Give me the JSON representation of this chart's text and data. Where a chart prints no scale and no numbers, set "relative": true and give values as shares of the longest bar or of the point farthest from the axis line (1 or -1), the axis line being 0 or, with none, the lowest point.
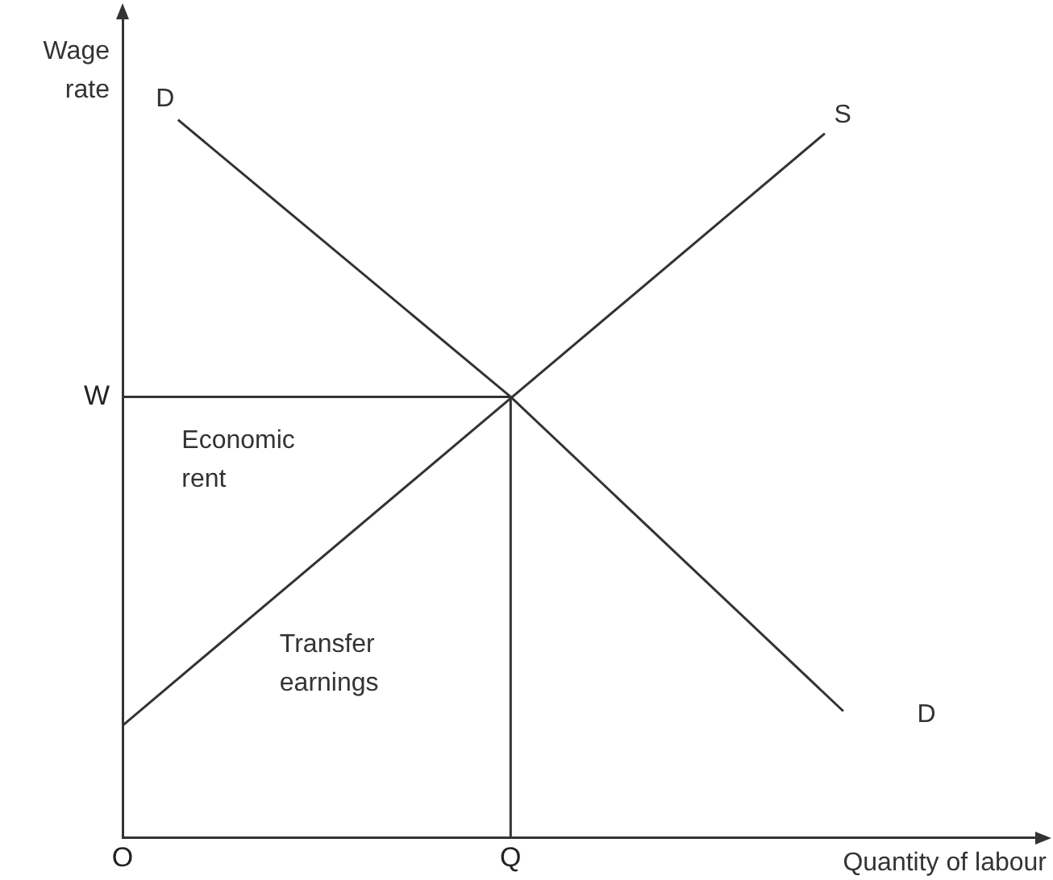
{
  "chart_data": {
    "type": "line",
    "relative": true,
    "xlabel": "Quantity of labour",
    "ylabel": "Wage rate",
    "marker": "none",
    "grid": false,
    "legend": false,
    "categories": [
      "O",
      null,
      null,
      null,
      null,
      null,
      null,
      null,
      null,
      null,
      null,
      null,
      null,
      null,
      null,
      null,
      null,
      null,
      null,
      null,
      null,
      "Q",
      null,
      null,
      null,
      null,
      null,
      null,
      null,
      null,
      null,
      null,
      null,
      null,
      null,
      null,
      null,
      null,
      null,
      null,
      null,
      null,
      null,
      null,
      null,
      null,
      null,
      null,
      null,
      null,
      null
    ],
    "series": [
      {
        "color": "#333333",
        "values": [
          null,
          null,
          null,
          1,
          null,
          null,
          null,
          null,
          null,
          null,
          null,
          null,
          null,
          null,
          null,
          null,
          null,
          null,
          null,
          null,
          null,
          0.614,
          null,
          null,
          null,
          null,
          null,
          null,
          null,
          null,
          null,
          null,
          null,
          null,
          null,
          null,
          null,
          null,
          null,
          0.176,
          null,
          null,
          null,
          null,
          null,
          null,
          null,
          null,
          null,
          null,
          null
        ]
      },
      {
        "color": "#333333",
        "values": [
          0.156,
          null,
          null,
          null,
          null,
          null,
          null,
          null,
          null,
          null,
          null,
          null,
          null,
          null,
          null,
          null,
          null,
          null,
          null,
          null,
          null,
          null,
          null,
          null,
          null,
          null,
          null,
          null,
          null,
          null,
          null,
          null,
          null,
          null,
          null,
          null,
          null,
          null,
          0.981,
          null,
          null,
          null,
          null,
          null,
          null,
          null,
          null,
          null,
          null,
          null,
          null
        ]
      }
    ],
    "ref_lines": [
      {
        "axis": "y",
        "value": 0.614,
        "label": "W",
        "color": "#333333"
      },
      {
        "axis": "x",
        "value": "Q",
        "color": "#333333"
      }
    ],
    "annotations": [
      "D",
      "S",
      "D",
      "Economic\nrent",
      "Transfer\nearnings"
    ]
  }
}
